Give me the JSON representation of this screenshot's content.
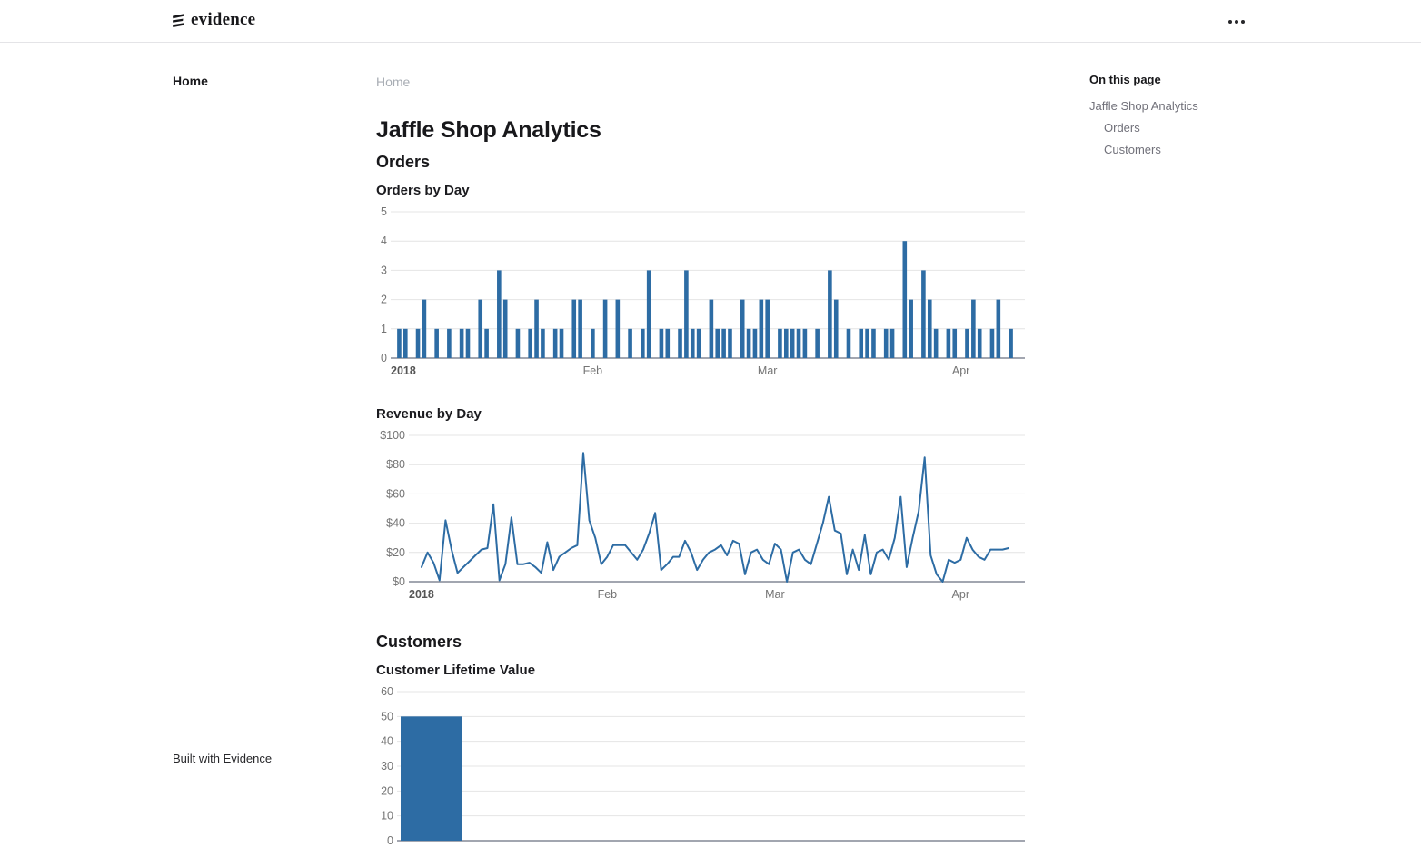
{
  "header": {
    "logo_text": "evidence",
    "menu_icon": "ellipsis-menu"
  },
  "sidebar": {
    "items": [
      {
        "label": "Home",
        "active": true
      }
    ],
    "footer_label": "Built with Evidence"
  },
  "breadcrumb": "Home",
  "page": {
    "title": "Jaffle Shop Analytics",
    "section_orders_heading": "Orders",
    "section_customers_heading": "Customers"
  },
  "toc": {
    "title": "On this page",
    "items": [
      {
        "label": "Jaffle Shop Analytics",
        "level": 1
      },
      {
        "label": "Orders",
        "level": 2
      },
      {
        "label": "Customers",
        "level": 2
      }
    ]
  },
  "colors": {
    "accent_blue": "#2d6ca4",
    "gridline": "#e4e4e4",
    "axis_line": "#6b7280",
    "tick_label": "#757575",
    "year_label": "#555555"
  },
  "chart_data": [
    {
      "id": "orders_by_day",
      "type": "bar",
      "title": "Orders by Day",
      "x_unit": "day",
      "x_range": [
        "2018-01-01",
        "2018-04-09"
      ],
      "xticks": [
        {
          "label": "2018",
          "day": 0
        },
        {
          "label": "Feb",
          "day": 31
        },
        {
          "label": "Mar",
          "day": 59
        },
        {
          "label": "Apr",
          "day": 90
        }
      ],
      "ylim": [
        0,
        5
      ],
      "yticks": [
        {
          "v": 0,
          "label": "0"
        },
        {
          "v": 1,
          "label": "1"
        },
        {
          "v": 2,
          "label": "2"
        },
        {
          "v": 3,
          "label": "3"
        },
        {
          "v": 4,
          "label": "4"
        },
        {
          "v": 5,
          "label": "5"
        }
      ],
      "values": [
        1,
        1,
        0,
        1,
        2,
        0,
        1,
        0,
        1,
        0,
        1,
        1,
        0,
        2,
        1,
        0,
        3,
        2,
        0,
        1,
        0,
        1,
        2,
        1,
        0,
        1,
        1,
        0,
        2,
        2,
        0,
        1,
        0,
        2,
        0,
        2,
        0,
        1,
        0,
        1,
        3,
        0,
        1,
        1,
        0,
        1,
        3,
        1,
        1,
        0,
        2,
        1,
        1,
        1,
        0,
        2,
        1,
        1,
        2,
        2,
        0,
        1,
        1,
        1,
        1,
        1,
        0,
        1,
        0,
        3,
        2,
        0,
        1,
        0,
        1,
        1,
        1,
        0,
        1,
        1,
        0,
        4,
        2,
        0,
        3,
        2,
        1,
        0,
        1,
        1,
        0,
        1,
        2,
        1,
        0,
        1,
        2,
        0,
        1
      ],
      "grid": true,
      "legend": false
    },
    {
      "id": "revenue_by_day",
      "type": "line",
      "title": "Revenue by Day",
      "x_unit": "day",
      "x_range": [
        "2018-01-01",
        "2018-04-09"
      ],
      "xticks": [
        {
          "label": "2018",
          "day": 0
        },
        {
          "label": "Feb",
          "day": 31
        },
        {
          "label": "Mar",
          "day": 59
        },
        {
          "label": "Apr",
          "day": 90
        }
      ],
      "ylim": [
        0,
        100
      ],
      "yticks": [
        {
          "v": 0,
          "label": "$0"
        },
        {
          "v": 20,
          "label": "$20"
        },
        {
          "v": 40,
          "label": "$40"
        },
        {
          "v": 60,
          "label": "$60"
        },
        {
          "v": 80,
          "label": "$80"
        },
        {
          "v": 100,
          "label": "$100"
        }
      ],
      "values": [
        10,
        20,
        13,
        1,
        42,
        22,
        6,
        10,
        14,
        18,
        22,
        23,
        53,
        1,
        12,
        44,
        12,
        12,
        13,
        10,
        6,
        27,
        8,
        17,
        20,
        23,
        25,
        88,
        42,
        30,
        12,
        17,
        25,
        25,
        25,
        20,
        15,
        22,
        33,
        47,
        8,
        12,
        17,
        17,
        28,
        20,
        8,
        15,
        20,
        22,
        25,
        18,
        28,
        26,
        5,
        20,
        22,
        15,
        12,
        26,
        22,
        0,
        20,
        22,
        15,
        12,
        26,
        40,
        58,
        35,
        33,
        5,
        22,
        8,
        32,
        5,
        20,
        22,
        15,
        30,
        58,
        10,
        30,
        48,
        85,
        18,
        5,
        0,
        15,
        13,
        15,
        30,
        22,
        17,
        15,
        22,
        22,
        22,
        23
      ],
      "grid": true,
      "legend": false
    },
    {
      "id": "customer_lifetime_value",
      "type": "bar",
      "title": "Customer Lifetime Value",
      "categories": [
        ""
      ],
      "values": [
        50
      ],
      "ylim": [
        0,
        60
      ],
      "yticks": [
        {
          "v": 0,
          "label": "0"
        },
        {
          "v": 10,
          "label": "10"
        },
        {
          "v": 20,
          "label": "20"
        },
        {
          "v": 30,
          "label": "30"
        },
        {
          "v": 40,
          "label": "40"
        },
        {
          "v": 50,
          "label": "50"
        },
        {
          "v": 60,
          "label": "60"
        }
      ],
      "grid": true,
      "legend": false,
      "note_visible_ticks": [
        "60",
        "50",
        "40",
        "30"
      ]
    }
  ]
}
